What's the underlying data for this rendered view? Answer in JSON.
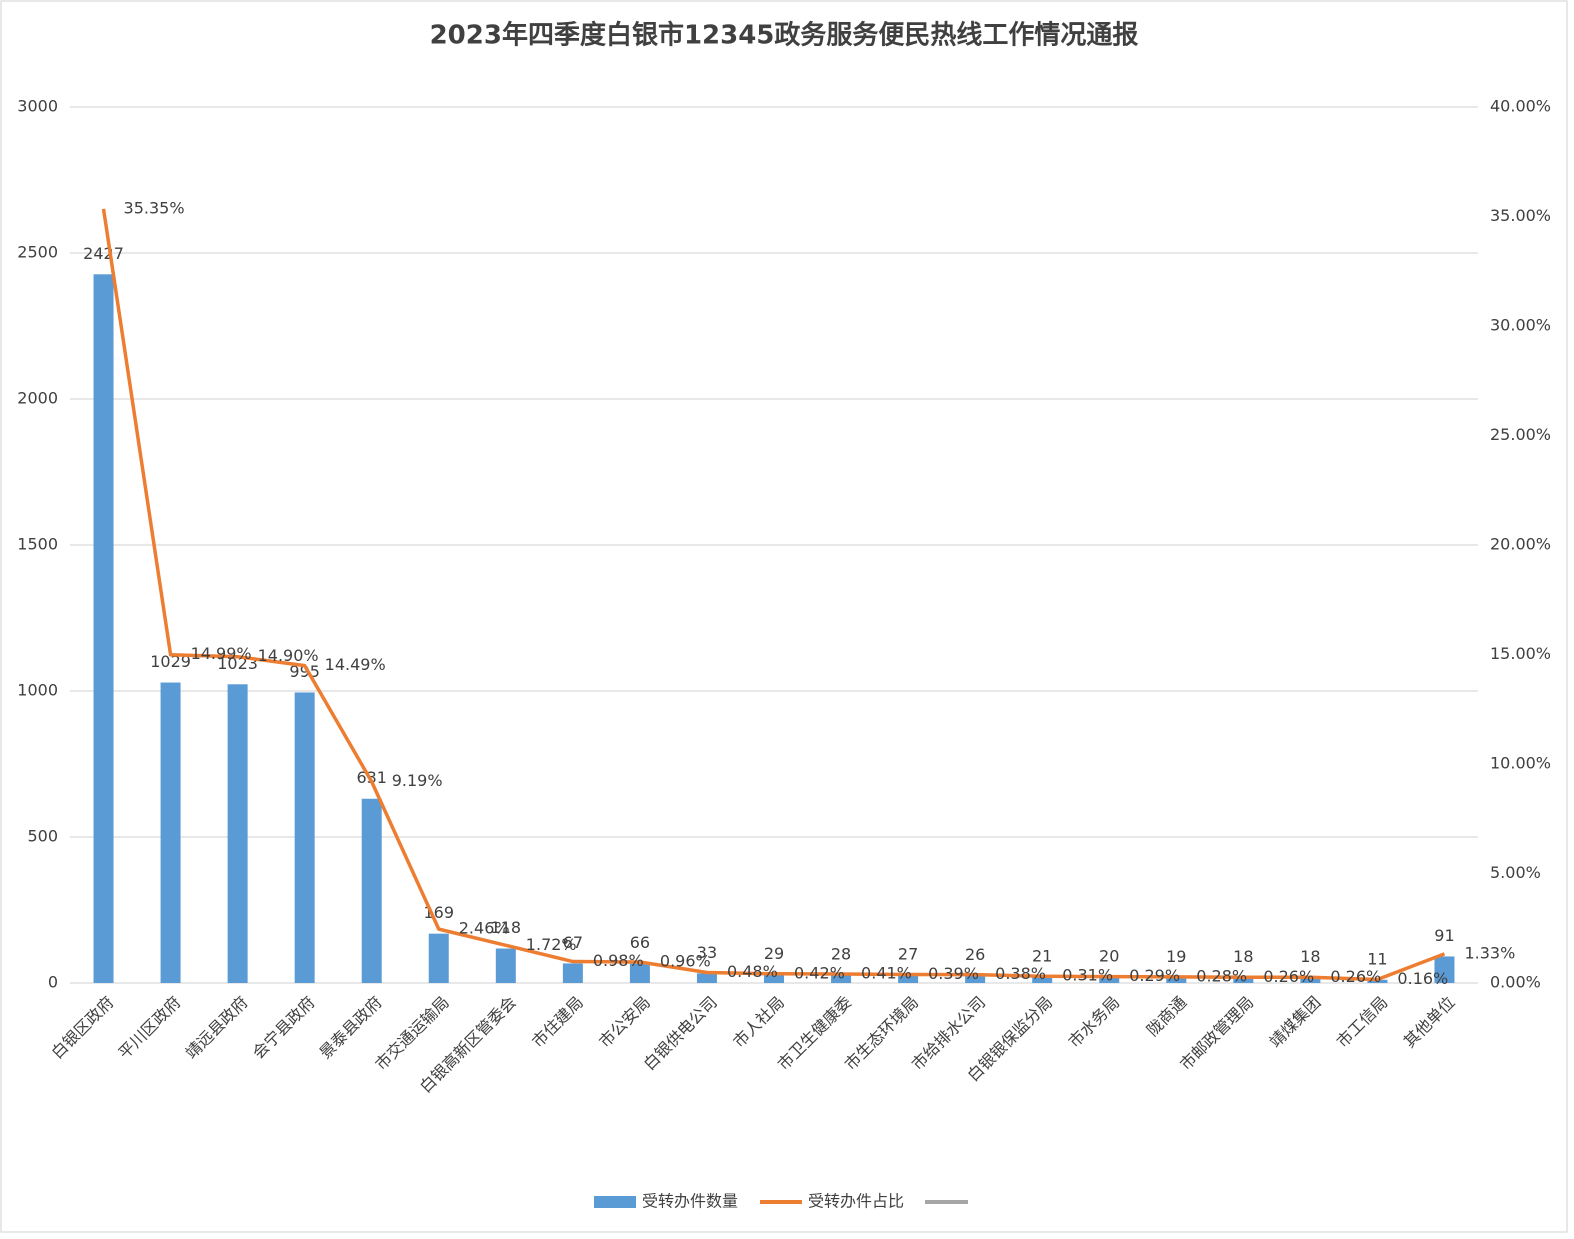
{
  "chart_data": {
    "type": "bar",
    "title": "2023年四季度白银市12345政务服务便民热线工作情况通报",
    "categories": [
      "白银区政府",
      "平川区政府",
      "靖远县政府",
      "会宁县政府",
      "景泰县政府",
      "市交通运输局",
      "白银高新区管委会",
      "市住建局",
      "市公安局",
      "白银供电公司",
      "市人社局",
      "市卫生健康委",
      "市生态环境局",
      "市给排水公司",
      "白银银保监分局",
      "市水务局",
      "陇商通",
      "市邮政管理局",
      "靖煤集团",
      "市工信局",
      "其他单位"
    ],
    "series": [
      {
        "name": "受转办件数量",
        "type": "bar",
        "color": "#5b9bd5",
        "values": [
          2427,
          1029,
          1023,
          995,
          631,
          169,
          118,
          67,
          66,
          33,
          29,
          28,
          27,
          26,
          21,
          20,
          19,
          18,
          18,
          11,
          91
        ]
      },
      {
        "name": "受转办件占比",
        "type": "line",
        "axis": "y2",
        "color": "#ed7d31",
        "values": [
          35.35,
          14.99,
          14.9,
          14.49,
          9.19,
          2.46,
          1.72,
          0.98,
          0.96,
          0.48,
          0.42,
          0.41,
          0.39,
          0.38,
          0.31,
          0.29,
          0.28,
          0.26,
          0.26,
          0.16,
          1.33
        ],
        "value_labels": [
          "35.35%",
          "14.99%",
          "14.90%",
          "14.49%",
          "9.19%",
          "2.46%",
          "1.72%",
          "0.98%",
          "0.96%",
          "0.48%",
          "0.42%",
          "0.41%",
          "0.39%",
          "0.38%",
          "0.31%",
          "0.29%",
          "0.28%",
          "0.26%",
          "0.26%",
          "0.16%",
          "1.33%"
        ]
      }
    ],
    "ylim": [
      0,
      3000
    ],
    "yticks": [
      0,
      500,
      1000,
      1500,
      2000,
      2500,
      3000
    ],
    "y2lim": [
      0,
      40
    ],
    "y2ticks": [
      {
        "value": 0,
        "label": "0.00%"
      },
      {
        "value": 5,
        "label": "5.00%"
      },
      {
        "value": 10,
        "label": "10.00%"
      },
      {
        "value": 15,
        "label": "15.00%"
      },
      {
        "value": 20,
        "label": "20.00%"
      },
      {
        "value": 25,
        "label": "25.00%"
      },
      {
        "value": 30,
        "label": "30.00%"
      },
      {
        "value": 35,
        "label": "35.00%"
      },
      {
        "value": 40,
        "label": "40.00%"
      }
    ],
    "grid": true,
    "legend": "bottom"
  }
}
